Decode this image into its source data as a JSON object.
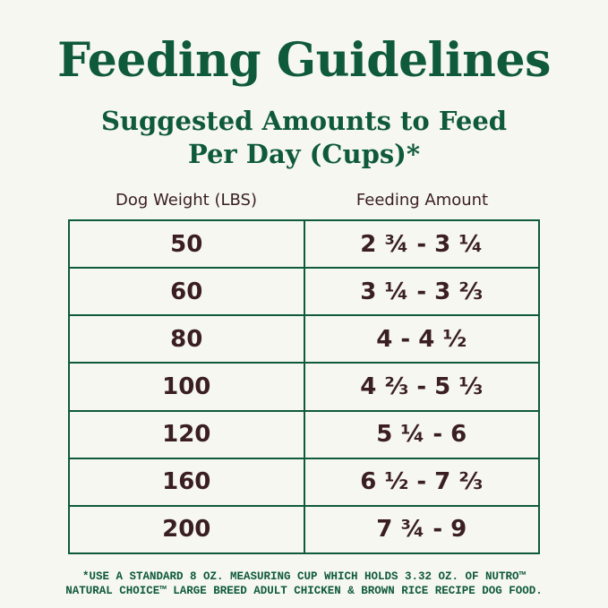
{
  "title": "Feeding Guidelines",
  "subtitle_line1": "Suggested Amounts to Feed",
  "subtitle_line2": "Per Day (Cups)*",
  "table": {
    "headers": [
      "Dog Weight (LBS)",
      "Feeding Amount"
    ],
    "rows": [
      [
        "50",
        "2 ¾ - 3 ¼"
      ],
      [
        "60",
        "3 ¼ - 3 ⅔"
      ],
      [
        "80",
        "4 - 4 ½"
      ],
      [
        "100",
        "4 ⅔ - 5 ⅓"
      ],
      [
        "120",
        "5 ¼ - 6"
      ],
      [
        "160",
        "6 ½ - 7 ⅔"
      ],
      [
        "200",
        "7 ¾ - 9"
      ]
    ]
  },
  "footnote_line1": "*USE A STANDARD 8 OZ. MEASURING CUP WHICH HOLDS 3.32 OZ. OF NUTRO™",
  "footnote_line2": "NATURAL CHOICE™ LARGE BREED ADULT CHICKEN & BROWN RICE RECIPE DOG FOOD.",
  "colors": {
    "green": "#0f5a3a",
    "text": "#3a1e22",
    "background": "#f6f7f1"
  }
}
